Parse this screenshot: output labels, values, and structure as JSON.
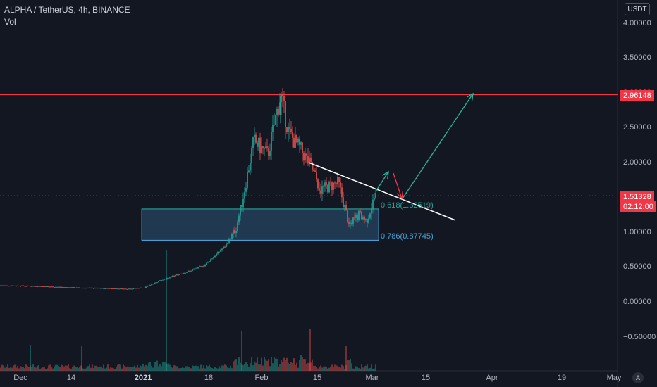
{
  "header": {
    "symbol_line": "ALPHA / TetherUS, 4h, BINANCE",
    "volume_label": "Vol"
  },
  "price_scale": {
    "currency": "USDT",
    "ticks": [
      "4.00000",
      "3.50000",
      "3.00000",
      "2.50000",
      "2.00000",
      "1.50000",
      "1.00000",
      "0.50000",
      "0.00000",
      "−0.50000"
    ],
    "tick_values": [
      4.0,
      3.5,
      3.0,
      2.5,
      2.0,
      1.5,
      1.0,
      0.5,
      0.0,
      -0.5
    ]
  },
  "time_scale": {
    "labels": [
      "Dec",
      "14",
      "2021",
      "18",
      "Feb",
      "15",
      "Mar",
      "15",
      "Apr",
      "19",
      "May"
    ],
    "bold_labels": [
      "2021"
    ]
  },
  "tags": {
    "resistance_price": "2.96148",
    "current_price": "1.51328",
    "countdown": "02:12:00"
  },
  "fib": {
    "label_618": "0.618(1.32519)",
    "label_786": "0.786(0.87745)"
  },
  "scale_button": "A",
  "colors": {
    "background": "#131722",
    "up": "#26a69a",
    "down": "#ef5350",
    "resistance": "#f23645",
    "zone": "#2a4a6b",
    "zone_border": "#4ea3d8",
    "trendline": "#ffffff",
    "arrow_green": "#2bb79a",
    "arrow_red": "#f23645"
  },
  "chart_data": {
    "type": "candlestick",
    "title": "ALPHA / TetherUS, 4h, BINANCE",
    "series_approx": [
      {
        "date": "Dec 1",
        "close": 0.23
      },
      {
        "date": "Dec 8",
        "close": 0.22
      },
      {
        "date": "Dec 14",
        "close": 0.2
      },
      {
        "date": "Dec 21",
        "close": 0.19
      },
      {
        "date": "Dec 28",
        "close": 0.18
      },
      {
        "date": "Jan 1",
        "close": 0.2
      },
      {
        "date": "Jan 5",
        "close": 0.29
      },
      {
        "date": "Jan 8",
        "close": 0.38
      },
      {
        "date": "Jan 12",
        "close": 0.44
      },
      {
        "date": "Jan 16",
        "close": 0.52
      },
      {
        "date": "Jan 20",
        "close": 0.8
      },
      {
        "date": "Jan 23",
        "close": 1.05
      },
      {
        "date": "Jan 26",
        "close": 1.5
      },
      {
        "date": "Jan 28",
        "close": 2.3
      },
      {
        "date": "Feb 1",
        "close": 2.1
      },
      {
        "date": "Feb 5",
        "close": 2.95
      },
      {
        "date": "Feb 7",
        "close": 2.4
      },
      {
        "date": "Feb 10",
        "close": 2.2
      },
      {
        "date": "Feb 13",
        "close": 1.95
      },
      {
        "date": "Feb 16",
        "close": 1.6
      },
      {
        "date": "Feb 20",
        "close": 1.7
      },
      {
        "date": "Feb 23",
        "close": 1.1
      },
      {
        "date": "Feb 25",
        "close": 1.25
      },
      {
        "date": "Feb 28",
        "close": 1.15
      },
      {
        "date": "Mar 1",
        "close": 1.51
      }
    ],
    "ylim": [
      -0.75,
      4.2
    ],
    "resistance_level": 2.96148,
    "last_price": 1.51328,
    "fib_levels": [
      {
        "ratio": 0.618,
        "price": 1.32519
      },
      {
        "ratio": 0.786,
        "price": 0.87745
      }
    ]
  }
}
